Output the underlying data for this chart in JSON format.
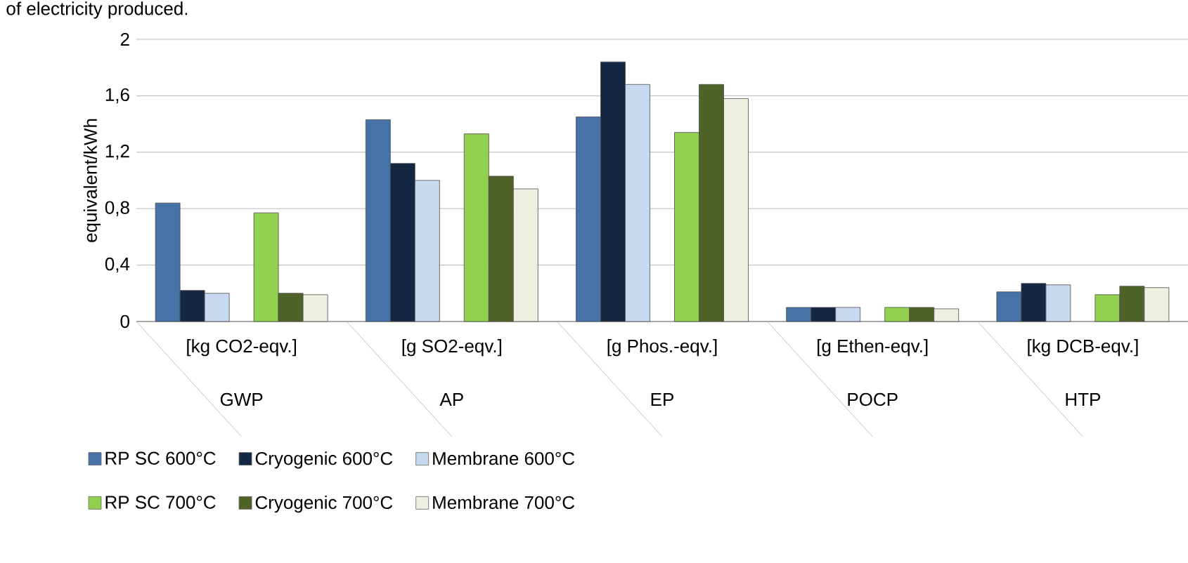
{
  "chart_data": {
    "type": "bar",
    "ylabel": "equivalent/kWh",
    "categories": [
      "[kg CO2-eqv.]",
      "[g SO2-eqv.]",
      "[g Phos.-eqv.]",
      "[g Ethen-eqv.]",
      "[kg DCB-eqv.]"
    ],
    "annotations": [
      "of electricity produced.",
      "GWP",
      "AP",
      "EP",
      "POCP",
      "HTP"
    ],
    "series": [
      {
        "name": "RP SC 600°C",
        "color": "#4672a8",
        "values": [
          0.84,
          1.43,
          1.45,
          0.1,
          0.21
        ]
      },
      {
        "name": "Cryogenic 600°C",
        "color": "#132743",
        "values": [
          0.22,
          1.12,
          1.84,
          0.1,
          0.27
        ]
      },
      {
        "name": "Membrane 600°C",
        "color": "#c6d9f0",
        "values": [
          0.2,
          1.0,
          1.68,
          0.1,
          0.26
        ]
      },
      {
        "name": "RP SC 700°C",
        "color": "#92d050",
        "values": [
          0.77,
          1.33,
          1.34,
          0.1,
          0.19
        ]
      },
      {
        "name": "Cryogenic 700°C",
        "color": "#4f6228",
        "values": [
          0.2,
          1.03,
          1.68,
          0.1,
          0.25
        ]
      },
      {
        "name": "Membrane 700°C",
        "color": "#ebf1de",
        "values": [
          0.19,
          0.94,
          1.58,
          0.09,
          0.24
        ]
      }
    ],
    "ylim": [
      0,
      2
    ],
    "yticks": [
      {
        "value": 0,
        "label": "0"
      },
      {
        "value": 0.4,
        "label": "0,4"
      },
      {
        "value": 0.8,
        "label": "0,8"
      },
      {
        "value": 1.2,
        "label": "1,2"
      },
      {
        "value": 1.6,
        "label": "1,6"
      },
      {
        "value": 2,
        "label": "2"
      }
    ],
    "grid": "y",
    "legend": "bottom"
  }
}
